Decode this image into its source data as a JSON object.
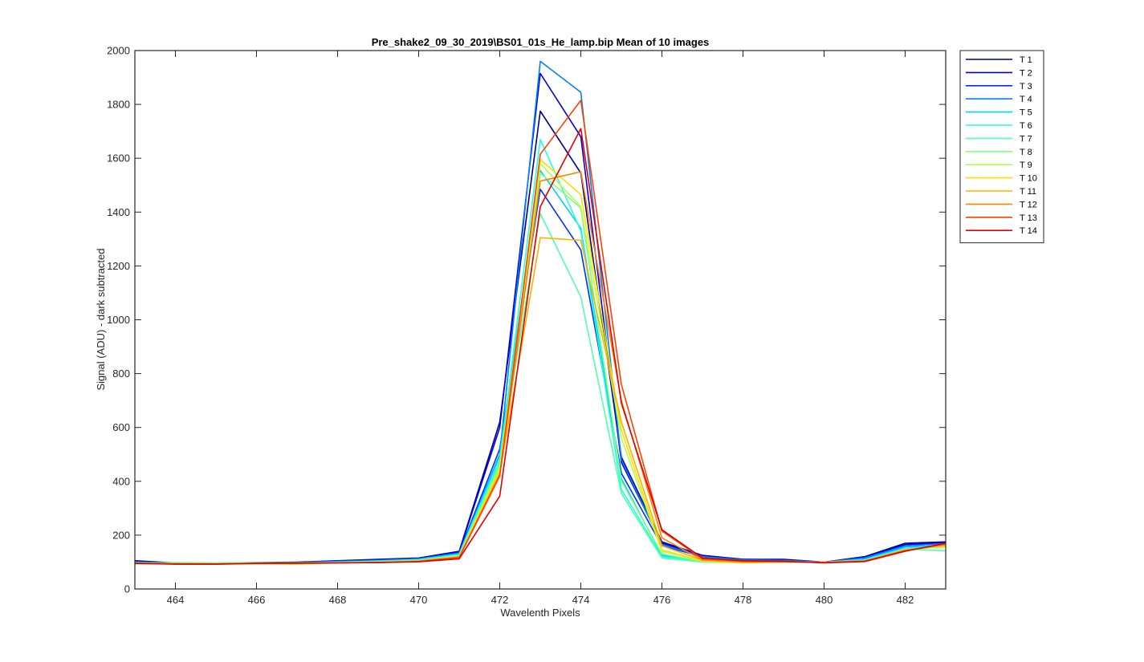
{
  "chart_data": {
    "type": "line",
    "title": "Pre_shake2_09_30_2019\\BS01_01s_He_lamp.bip  Mean of 10 images",
    "xlabel": "Wavelenth Pixels",
    "ylabel": "Signal (ADU) - dark subtracted",
    "xlim": [
      463,
      483
    ],
    "ylim": [
      0,
      2000
    ],
    "xticks": [
      "464",
      "466",
      "468",
      "470",
      "472",
      "474",
      "476",
      "478",
      "480",
      "482"
    ],
    "yticks": [
      "0",
      "200",
      "400",
      "600",
      "800",
      "1000",
      "1200",
      "1400",
      "1600",
      "1800",
      "2000"
    ],
    "grid": false,
    "legend_position": "outside-top-right",
    "x": [
      463,
      464,
      465,
      466,
      467,
      468,
      469,
      470,
      471,
      472,
      473,
      474,
      475,
      476,
      477,
      478,
      479,
      480,
      481,
      482,
      483
    ],
    "series": [
      {
        "name": "T 1",
        "color": "#00008f",
        "values": [
          105,
          97,
          96,
          98,
          100,
          105,
          110,
          115,
          140,
          620,
          1775,
          1545,
          490,
          175,
          125,
          110,
          110,
          100,
          120,
          170,
          175
        ]
      },
      {
        "name": "T 2",
        "color": "#0000df",
        "values": [
          102,
          96,
          95,
          97,
          99,
          104,
          108,
          113,
          138,
          600,
          1915,
          1680,
          470,
          170,
          123,
          110,
          108,
          100,
          118,
          165,
          172
        ]
      },
      {
        "name": "T 3",
        "color": "#0030ff",
        "values": [
          100,
          96,
          95,
          97,
          98,
          103,
          107,
          112,
          135,
          520,
          1485,
          1260,
          430,
          160,
          120,
          108,
          106,
          100,
          115,
          160,
          170
        ]
      },
      {
        "name": "T 4",
        "color": "#0080ff",
        "values": [
          100,
          95,
          95,
          97,
          98,
          102,
          106,
          112,
          133,
          500,
          1960,
          1845,
          480,
          165,
          120,
          108,
          106,
          100,
          115,
          160,
          168
        ]
      },
      {
        "name": "T 5",
        "color": "#00cfff",
        "values": [
          98,
          95,
          94,
          96,
          97,
          100,
          104,
          110,
          130,
          495,
          1555,
          1340,
          410,
          125,
          105,
          103,
          103,
          100,
          110,
          155,
          162
        ]
      },
      {
        "name": "T 6",
        "color": "#20ffdf",
        "values": [
          98,
          96,
          95,
          96,
          96,
          100,
          103,
          108,
          128,
          480,
          1670,
          1330,
          370,
          120,
          103,
          100,
          101,
          100,
          108,
          150,
          158
        ]
      },
      {
        "name": "T 7",
        "color": "#50ffaf",
        "values": [
          96,
          98,
          97,
          98,
          97,
          99,
          102,
          106,
          125,
          470,
          1395,
          1085,
          355,
          115,
          100,
          98,
          100,
          100,
          105,
          148,
          142
        ]
      },
      {
        "name": "T 8",
        "color": "#80ff80",
        "values": [
          95,
          97,
          96,
          97,
          96,
          98,
          101,
          106,
          124,
          460,
          1545,
          1415,
          400,
          130,
          102,
          98,
          100,
          100,
          105,
          148,
          155
        ]
      },
      {
        "name": "T 9",
        "color": "#afff50",
        "values": [
          94,
          93,
          92,
          94,
          92,
          97,
          100,
          105,
          122,
          450,
          1580,
          1420,
          560,
          140,
          104,
          97,
          100,
          100,
          104,
          146,
          158
        ]
      },
      {
        "name": "T 10",
        "color": "#ffdf00",
        "values": [
          94,
          93,
          92,
          94,
          92,
          97,
          99,
          104,
          120,
          440,
          1595,
          1465,
          590,
          145,
          105,
          97,
          100,
          100,
          104,
          146,
          160
        ]
      },
      {
        "name": "T 11",
        "color": "#ffaf00",
        "values": [
          94,
          94,
          93,
          94,
          94,
          97,
          99,
          104,
          119,
          430,
          1305,
          1295,
          620,
          160,
          107,
          99,
          100,
          100,
          104,
          145,
          162
        ]
      },
      {
        "name": "T 12",
        "color": "#ff8000",
        "values": [
          95,
          94,
          93,
          94,
          95,
          97,
          99,
          103,
          118,
          425,
          1515,
          1550,
          700,
          190,
          108,
          101,
          101,
          99,
          104,
          144,
          165
        ]
      },
      {
        "name": "T 13",
        "color": "#ff4000",
        "values": [
          96,
          93,
          93,
          95,
          96,
          97,
          98,
          102,
          117,
          420,
          1615,
          1815,
          760,
          215,
          112,
          103,
          102,
          98,
          103,
          142,
          168
        ]
      },
      {
        "name": "T 14",
        "color": "#df0000",
        "values": [
          95,
          92,
          92,
          95,
          96,
          97,
          98,
          101,
          112,
          345,
          1420,
          1710,
          690,
          220,
          115,
          105,
          103,
          97,
          102,
          140,
          170
        ]
      }
    ]
  }
}
